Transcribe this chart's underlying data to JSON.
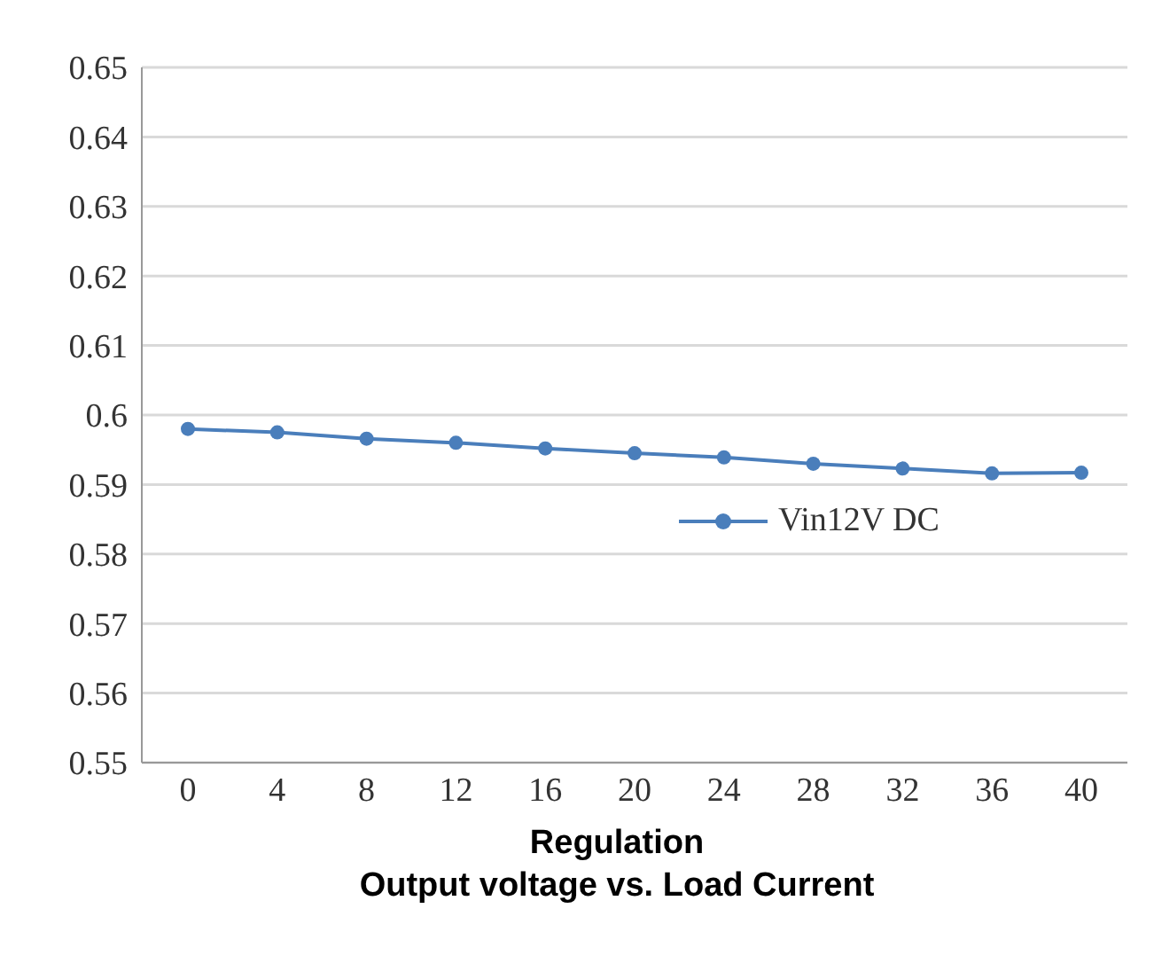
{
  "chart_data": {
    "type": "line",
    "title": "Output voltage vs. Load Current",
    "xlabel": "Regulation",
    "categories": [
      "0",
      "4",
      "8",
      "12",
      "16",
      "20",
      "24",
      "28",
      "32",
      "36",
      "40"
    ],
    "series": [
      {
        "name": "Vin12V DC",
        "color": "#4a7ebb",
        "values": [
          0.598,
          0.5975,
          0.5966,
          0.596,
          0.5952,
          0.5945,
          0.5939,
          0.593,
          0.5923,
          0.5916,
          0.5917
        ]
      }
    ],
    "ylim": [
      0.55,
      0.65
    ],
    "yticks": [
      0.55,
      0.56,
      0.57,
      0.58,
      0.59,
      0.6,
      0.61,
      0.62,
      0.63,
      0.64,
      0.65
    ],
    "grid": "y",
    "legend": "right",
    "marker": "circle",
    "line_style": "solid"
  }
}
